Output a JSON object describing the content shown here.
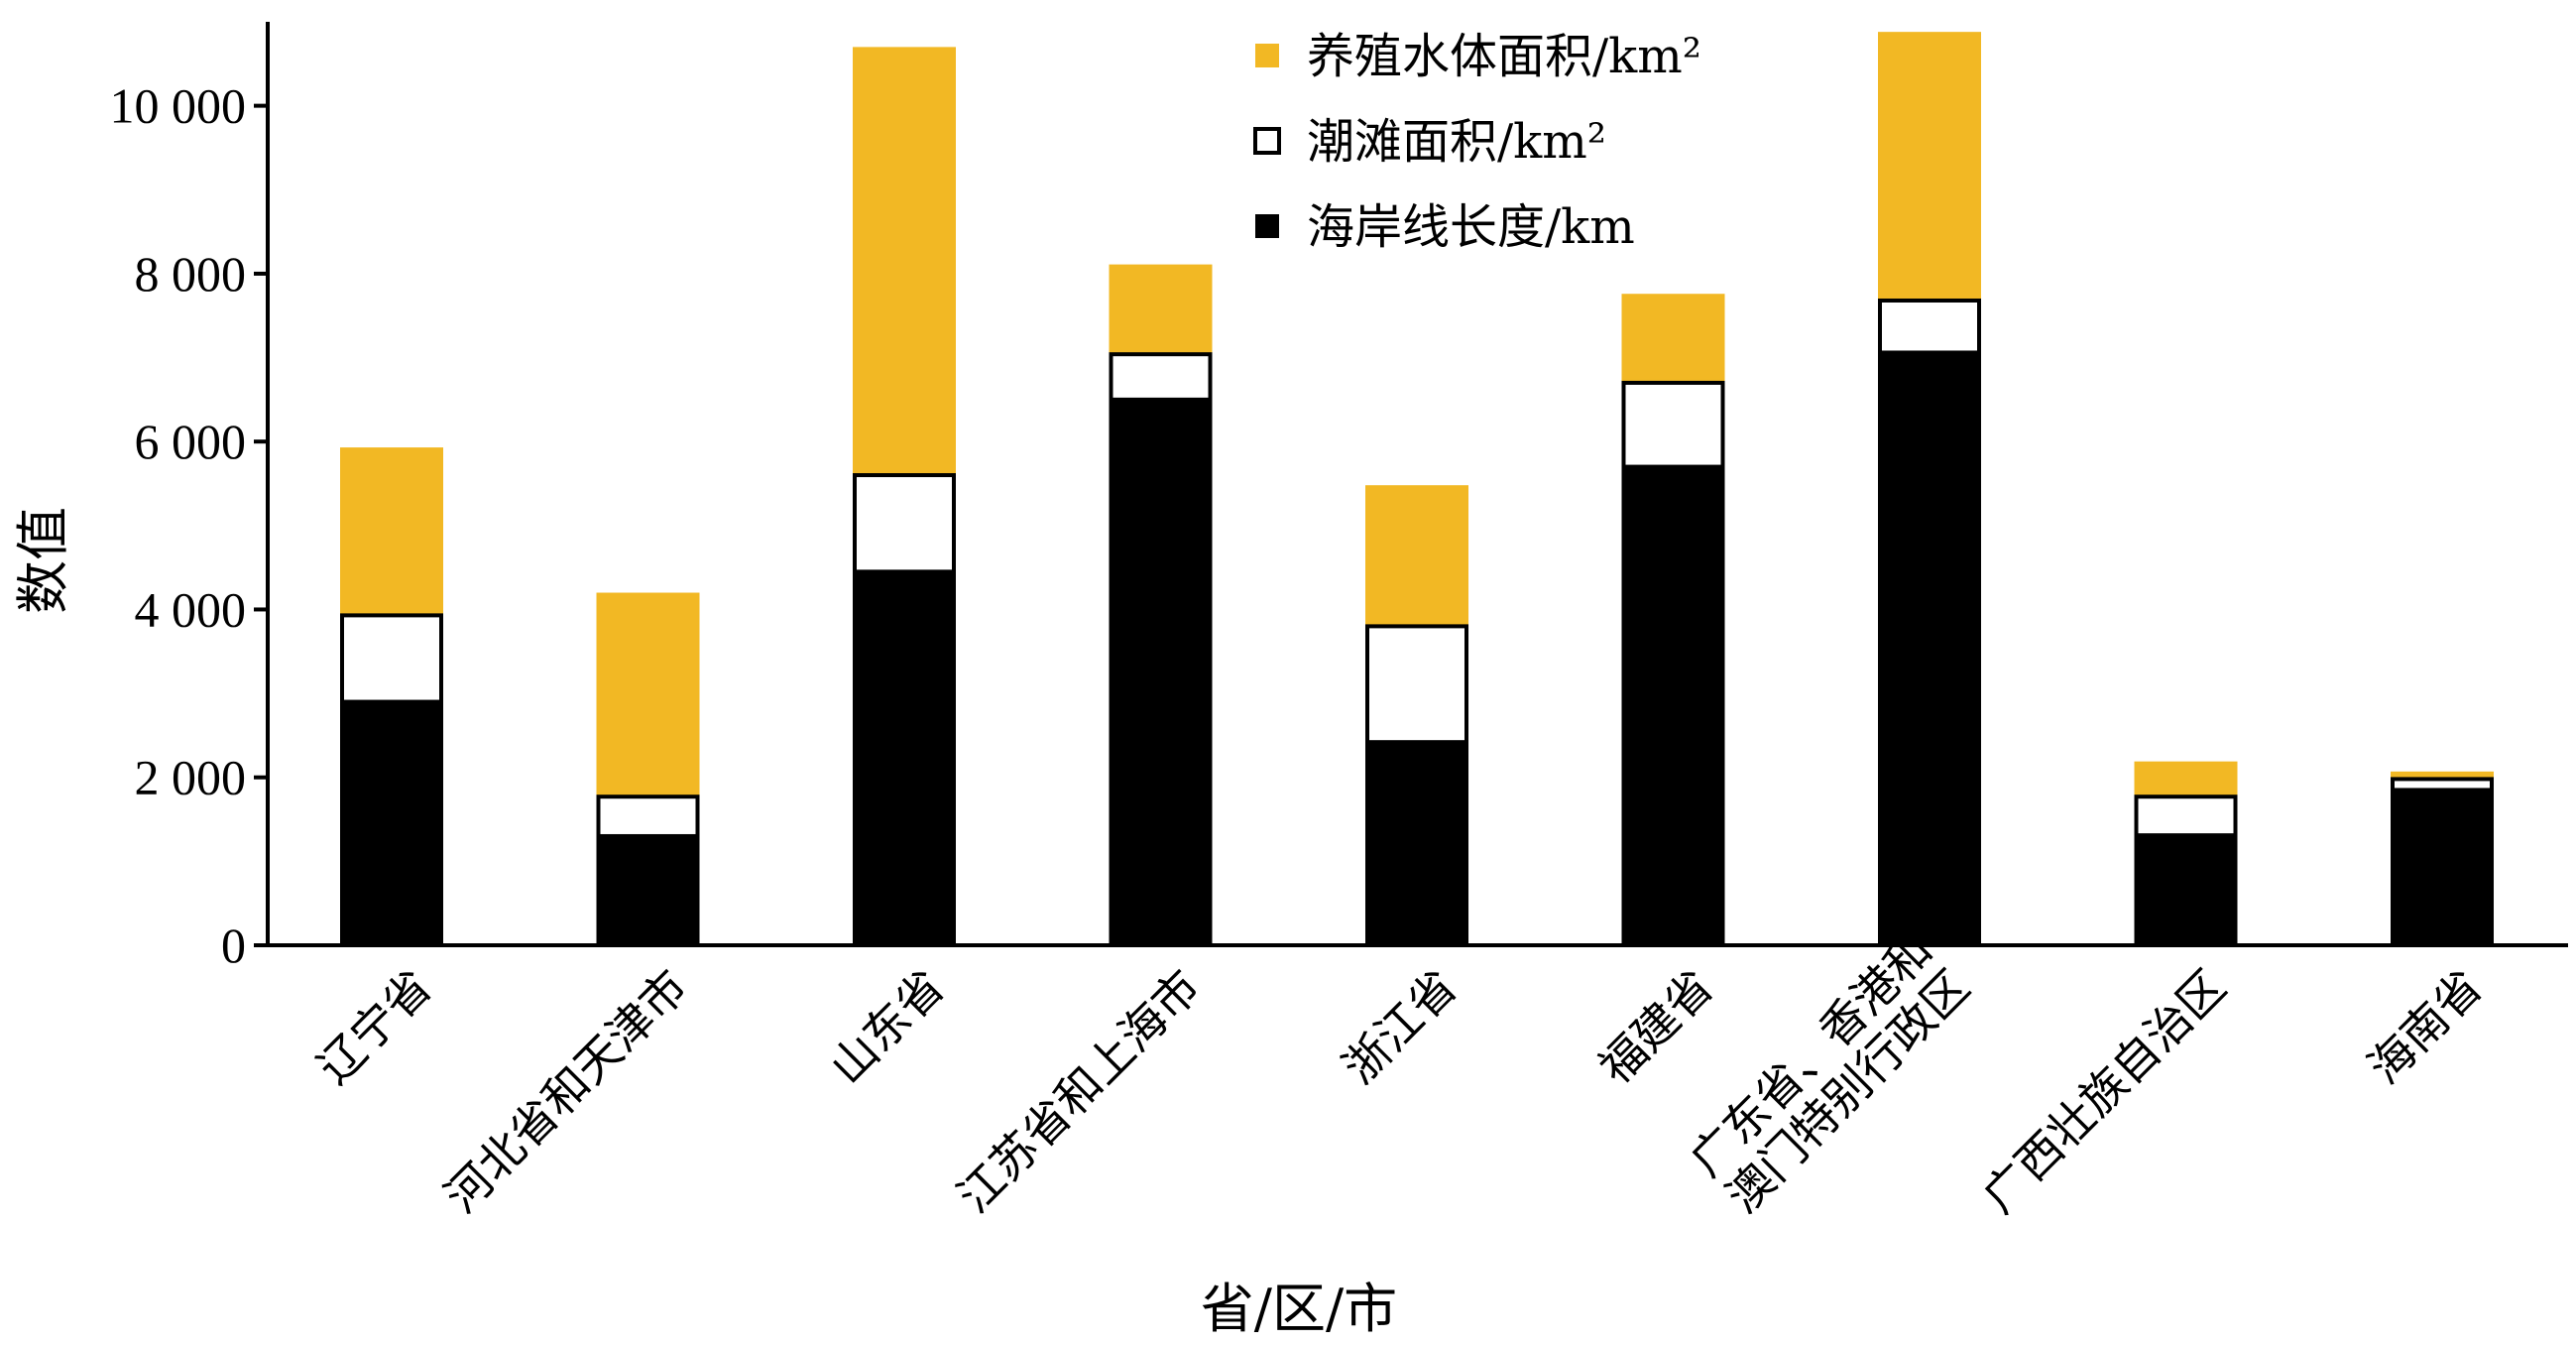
{
  "chart_data": {
    "type": "bar",
    "stacked": true,
    "xlabel": "省/区/市",
    "ylabel": "数值",
    "ylim": [
      0,
      11000
    ],
    "yticks": [
      0,
      2000,
      4000,
      6000,
      8000,
      10000
    ],
    "ytick_labels": [
      "0",
      "2 000",
      "4 000",
      "6 000",
      "8 000",
      "10 000"
    ],
    "legend_position": "top-center",
    "grid": false,
    "categories": [
      [
        "辽宁省"
      ],
      [
        "河北省和天津市"
      ],
      [
        "山东省"
      ],
      [
        "江苏省和上海市"
      ],
      [
        "浙江省"
      ],
      [
        "福建省"
      ],
      [
        "广东省、香港和",
        "澳门特别行政区"
      ],
      [
        "广西壮族自治区"
      ],
      [
        "海南省"
      ]
    ],
    "series": [
      {
        "name": "海岸线长度/km",
        "color": "#000000",
        "values": [
          2900,
          1300,
          4450,
          6500,
          2420,
          5700,
          7060,
          1310,
          1850
        ]
      },
      {
        "name": "潮滩面积/km²",
        "color": "#ffffff",
        "stroke": "#000000",
        "values": [
          1030,
          470,
          1150,
          540,
          1380,
          1000,
          620,
          460,
          130
        ]
      },
      {
        "name": "养殖水体面积/km²",
        "color": "#f2b824",
        "values": [
          2000,
          2430,
          5100,
          1070,
          1680,
          1060,
          3200,
          420,
          90
        ]
      }
    ],
    "legend_order": [
      2,
      1,
      0
    ]
  }
}
